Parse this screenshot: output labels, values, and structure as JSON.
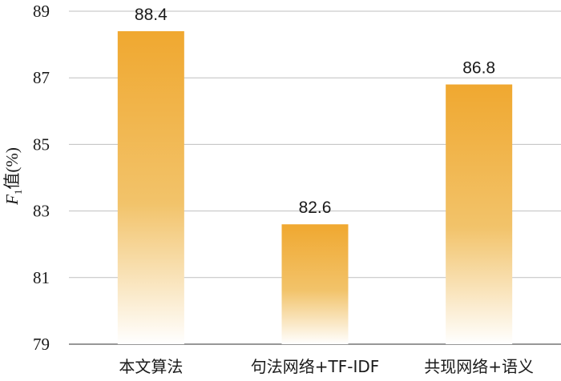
{
  "chart_data": {
    "type": "bar",
    "categories": [
      "本文算法",
      "句法网络+TF-IDF",
      "共现网络+语义"
    ],
    "values": [
      88.4,
      82.6,
      86.8
    ],
    "data_labels": [
      "88.4",
      "82.6",
      "86.8"
    ],
    "ylabel": {
      "var": "F",
      "sub": "1",
      "rest": "值(%)"
    },
    "ylim": [
      79,
      89
    ],
    "yticks": [
      79,
      81,
      83,
      85,
      87,
      89
    ],
    "grid": true,
    "bar_color": "#F0A830",
    "bar_fade_color": "#FFFFFF"
  }
}
